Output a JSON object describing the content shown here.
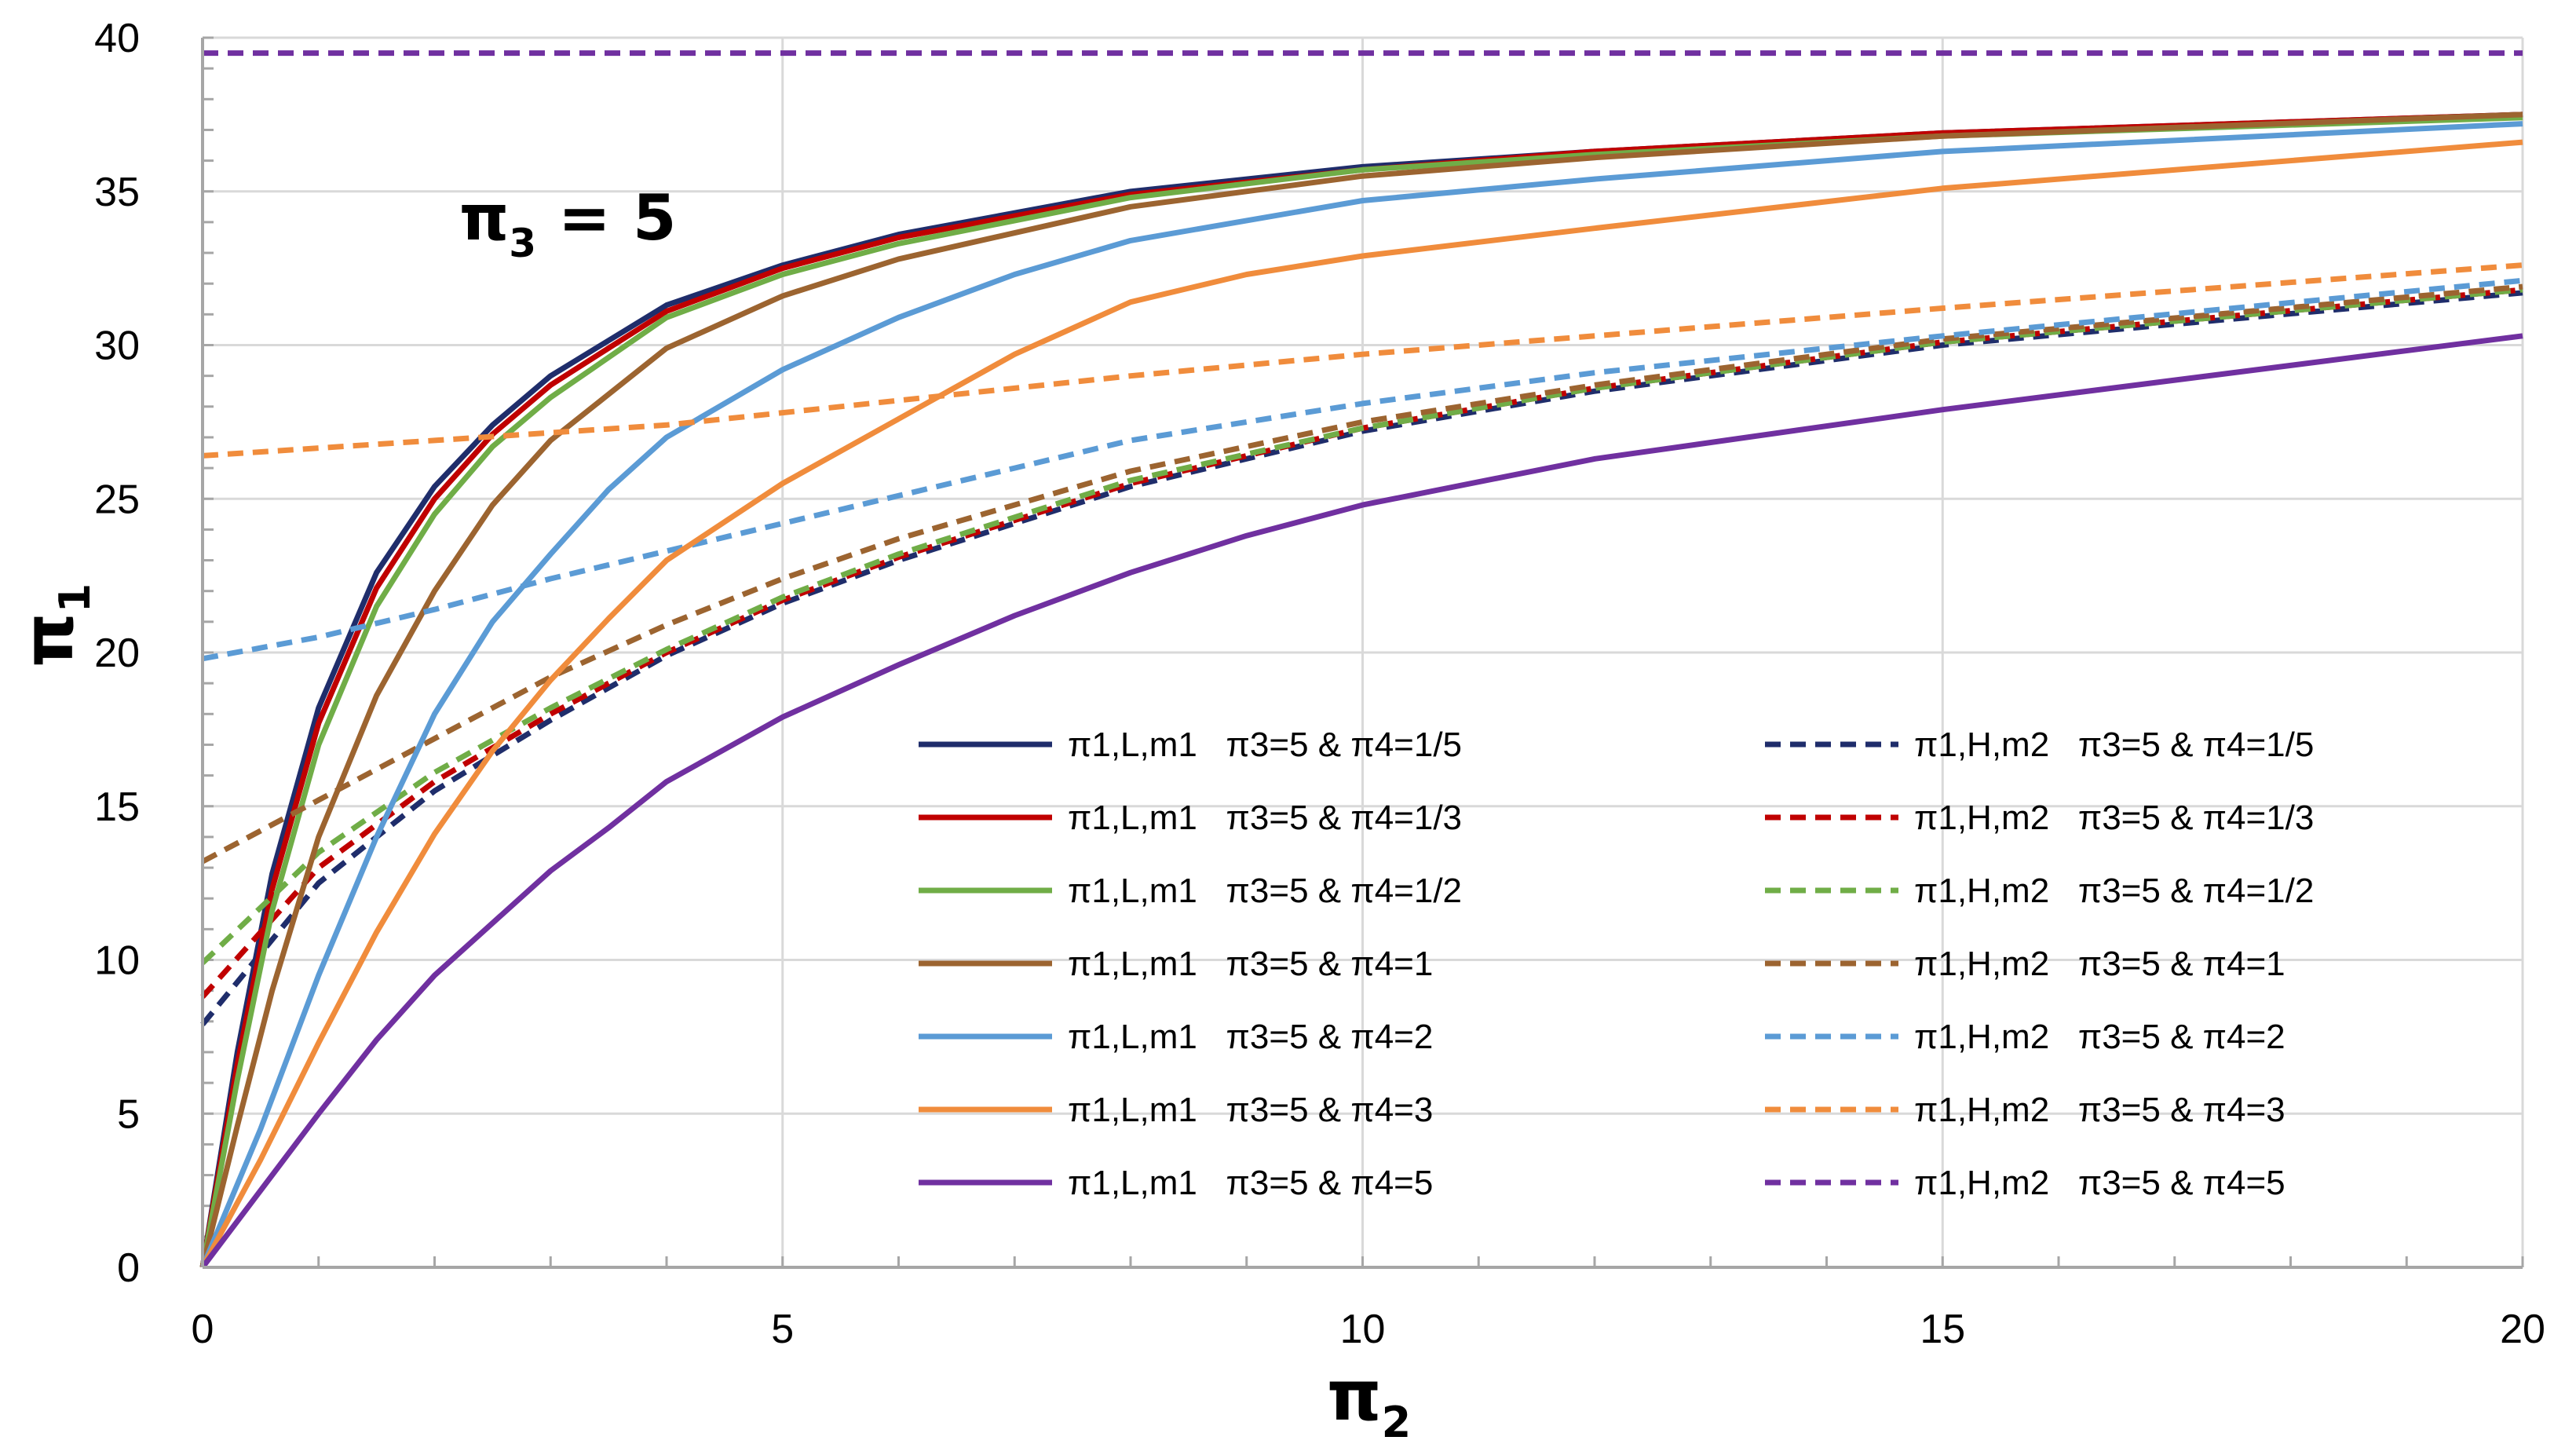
{
  "chart_data": {
    "type": "line",
    "annotation": {
      "symbol": "π",
      "subscript": "3",
      "suffix": " = 5"
    },
    "xlabel": {
      "symbol": "π",
      "subscript": "2"
    },
    "ylabel": {
      "symbol": "π",
      "subscript": "1"
    },
    "xlim": [
      0,
      20
    ],
    "ylim": [
      0,
      40
    ],
    "xticks": [
      0,
      5,
      10,
      15,
      20
    ],
    "yticks": [
      0,
      5,
      10,
      15,
      20,
      25,
      30,
      35,
      40
    ],
    "grid": true,
    "legend_position": "lower-right",
    "series": [
      {
        "name": "π1,L,m1   π3=5 & π4=1/5",
        "color": "#1f2d6b",
        "dash": "solid",
        "points": [
          [
            0,
            0
          ],
          [
            0.3,
            7
          ],
          [
            0.6,
            12.8
          ],
          [
            1,
            18.2
          ],
          [
            1.5,
            22.6
          ],
          [
            2,
            25.4
          ],
          [
            2.5,
            27.4
          ],
          [
            3,
            29
          ],
          [
            4,
            31.3
          ],
          [
            5,
            32.6
          ],
          [
            6,
            33.6
          ],
          [
            8,
            35
          ],
          [
            10,
            35.8
          ],
          [
            12,
            36.3
          ],
          [
            15,
            36.9
          ],
          [
            20,
            37.5
          ]
        ]
      },
      {
        "name": "π1,H,m2   π3=5 & π4=1/5",
        "color": "#1f2d6b",
        "dash": "dashed",
        "points": [
          [
            0,
            7.9
          ],
          [
            1,
            12.5
          ],
          [
            2,
            15.5
          ],
          [
            3,
            17.8
          ],
          [
            4,
            19.9
          ],
          [
            5,
            21.6
          ],
          [
            6,
            23
          ],
          [
            8,
            25.4
          ],
          [
            10,
            27.2
          ],
          [
            12,
            28.5
          ],
          [
            15,
            30
          ],
          [
            20,
            31.7
          ]
        ]
      },
      {
        "name": "π1,L,m1   π3=5 & π4=1/3",
        "color": "#c00000",
        "dash": "solid",
        "points": [
          [
            0,
            0
          ],
          [
            0.3,
            6.6
          ],
          [
            0.6,
            12.3
          ],
          [
            1,
            17.7
          ],
          [
            1.5,
            22.1
          ],
          [
            2,
            25
          ],
          [
            2.5,
            27.1
          ],
          [
            3,
            28.7
          ],
          [
            4,
            31.1
          ],
          [
            5,
            32.5
          ],
          [
            6,
            33.5
          ],
          [
            8,
            34.9
          ],
          [
            10,
            35.7
          ],
          [
            12,
            36.3
          ],
          [
            15,
            36.9
          ],
          [
            20,
            37.5
          ]
        ]
      },
      {
        "name": "π1,H,m2   π3=5 & π4=1/3",
        "color": "#c00000",
        "dash": "dashed",
        "points": [
          [
            0,
            8.8
          ],
          [
            1,
            13
          ],
          [
            2,
            15.8
          ],
          [
            3,
            18
          ],
          [
            4,
            20
          ],
          [
            5,
            21.7
          ],
          [
            6,
            23.1
          ],
          [
            8,
            25.5
          ],
          [
            10,
            27.3
          ],
          [
            12,
            28.6
          ],
          [
            15,
            30.1
          ],
          [
            20,
            31.8
          ]
        ]
      },
      {
        "name": "π1,L,m1   π3=5 & π4=1/2",
        "color": "#70ad47",
        "dash": "solid",
        "points": [
          [
            0,
            0
          ],
          [
            0.3,
            6.1
          ],
          [
            0.6,
            11.6
          ],
          [
            1,
            17
          ],
          [
            1.5,
            21.5
          ],
          [
            2,
            24.5
          ],
          [
            2.5,
            26.7
          ],
          [
            3,
            28.3
          ],
          [
            4,
            30.9
          ],
          [
            5,
            32.3
          ],
          [
            6,
            33.3
          ],
          [
            8,
            34.8
          ],
          [
            10,
            35.7
          ],
          [
            12,
            36.2
          ],
          [
            15,
            36.8
          ],
          [
            20,
            37.4
          ]
        ]
      },
      {
        "name": "π1,H,m2   π3=5 & π4=1/2",
        "color": "#70ad47",
        "dash": "dashed",
        "points": [
          [
            0,
            9.9
          ],
          [
            1,
            13.5
          ],
          [
            2,
            16.1
          ],
          [
            3,
            18.2
          ],
          [
            4,
            20.1
          ],
          [
            5,
            21.8
          ],
          [
            6,
            23.2
          ],
          [
            8,
            25.6
          ],
          [
            10,
            27.3
          ],
          [
            12,
            28.6
          ],
          [
            15,
            30.1
          ],
          [
            20,
            31.8
          ]
        ]
      },
      {
        "name": "π1,L,m1   π3=5 & π4=1",
        "color": "#9c6430",
        "dash": "solid",
        "points": [
          [
            0,
            0
          ],
          [
            0.3,
            4.6
          ],
          [
            0.6,
            9
          ],
          [
            1,
            14
          ],
          [
            1.5,
            18.6
          ],
          [
            2,
            22
          ],
          [
            2.5,
            24.8
          ],
          [
            3,
            26.9
          ],
          [
            4,
            29.9
          ],
          [
            5,
            31.6
          ],
          [
            6,
            32.8
          ],
          [
            8,
            34.5
          ],
          [
            10,
            35.5
          ],
          [
            12,
            36.1
          ],
          [
            15,
            36.8
          ],
          [
            20,
            37.5
          ]
        ]
      },
      {
        "name": "π1,H,m2   π3=5 & π4=1",
        "color": "#9c6430",
        "dash": "dashed",
        "points": [
          [
            0,
            13.2
          ],
          [
            1,
            15.2
          ],
          [
            2,
            17.2
          ],
          [
            3,
            19.2
          ],
          [
            4,
            20.9
          ],
          [
            5,
            22.4
          ],
          [
            6,
            23.7
          ],
          [
            8,
            25.9
          ],
          [
            10,
            27.5
          ],
          [
            12,
            28.7
          ],
          [
            15,
            30.2
          ],
          [
            20,
            31.9
          ]
        ]
      },
      {
        "name": "π1,L,m1   π3=5 & π4=2",
        "color": "#5b9bd5",
        "dash": "solid",
        "points": [
          [
            0,
            0
          ],
          [
            0.5,
            4.5
          ],
          [
            1,
            9.5
          ],
          [
            1.5,
            14
          ],
          [
            2,
            18
          ],
          [
            2.5,
            21
          ],
          [
            3,
            23.2
          ],
          [
            3.5,
            25.3
          ],
          [
            4,
            27
          ],
          [
            5,
            29.2
          ],
          [
            6,
            30.9
          ],
          [
            7,
            32.3
          ],
          [
            8,
            33.4
          ],
          [
            10,
            34.7
          ],
          [
            12,
            35.4
          ],
          [
            15,
            36.3
          ],
          [
            20,
            37.2
          ]
        ]
      },
      {
        "name": "π1,H,m2   π3=5 & π4=2",
        "color": "#5b9bd5",
        "dash": "dashed",
        "points": [
          [
            0,
            19.8
          ],
          [
            1,
            20.5
          ],
          [
            2,
            21.4
          ],
          [
            3,
            22.4
          ],
          [
            4,
            23.3
          ],
          [
            5,
            24.2
          ],
          [
            6,
            25.1
          ],
          [
            7,
            26
          ],
          [
            8,
            26.9
          ],
          [
            10,
            28.1
          ],
          [
            12,
            29.1
          ],
          [
            15,
            30.3
          ],
          [
            20,
            32.1
          ]
        ]
      },
      {
        "name": "π1,L,m1   π3=5 & π4=3",
        "color": "#f08c3c",
        "dash": "solid",
        "points": [
          [
            0,
            0
          ],
          [
            0.5,
            3.5
          ],
          [
            1,
            7.3
          ],
          [
            1.5,
            10.9
          ],
          [
            2,
            14.1
          ],
          [
            2.5,
            16.8
          ],
          [
            3,
            19.1
          ],
          [
            3.5,
            21.1
          ],
          [
            4,
            23
          ],
          [
            5,
            25.5
          ],
          [
            6,
            27.6
          ],
          [
            7,
            29.7
          ],
          [
            8,
            31.4
          ],
          [
            9,
            32.3
          ],
          [
            10,
            32.9
          ],
          [
            12,
            33.8
          ],
          [
            15,
            35.1
          ],
          [
            20,
            36.6
          ]
        ]
      },
      {
        "name": "π1,H,m2   π3=5 & π4=3",
        "color": "#f08c3c",
        "dash": "dashed",
        "points": [
          [
            0,
            26.4
          ],
          [
            2,
            26.9
          ],
          [
            4,
            27.4
          ],
          [
            6,
            28.2
          ],
          [
            8,
            29
          ],
          [
            10,
            29.7
          ],
          [
            12,
            30.3
          ],
          [
            15,
            31.2
          ],
          [
            20,
            32.6
          ]
        ]
      },
      {
        "name": "π1,L,m1   π3=5 & π4=5",
        "color": "#7030a0",
        "dash": "solid",
        "points": [
          [
            0,
            0
          ],
          [
            0.5,
            2.5
          ],
          [
            1,
            5
          ],
          [
            1.5,
            7.4
          ],
          [
            2,
            9.5
          ],
          [
            2.5,
            11.2
          ],
          [
            3,
            12.9
          ],
          [
            3.5,
            14.3
          ],
          [
            4,
            15.8
          ],
          [
            5,
            17.9
          ],
          [
            6,
            19.6
          ],
          [
            7,
            21.2
          ],
          [
            8,
            22.6
          ],
          [
            9,
            23.8
          ],
          [
            10,
            24.8
          ],
          [
            12,
            26.3
          ],
          [
            15,
            27.9
          ],
          [
            20,
            30.3
          ]
        ]
      },
      {
        "name": "π1,H,m2   π3=5 & π4=5",
        "color": "#7030a0",
        "dash": "dashed",
        "points": [
          [
            0,
            39.5
          ],
          [
            20,
            39.5
          ]
        ]
      }
    ]
  }
}
